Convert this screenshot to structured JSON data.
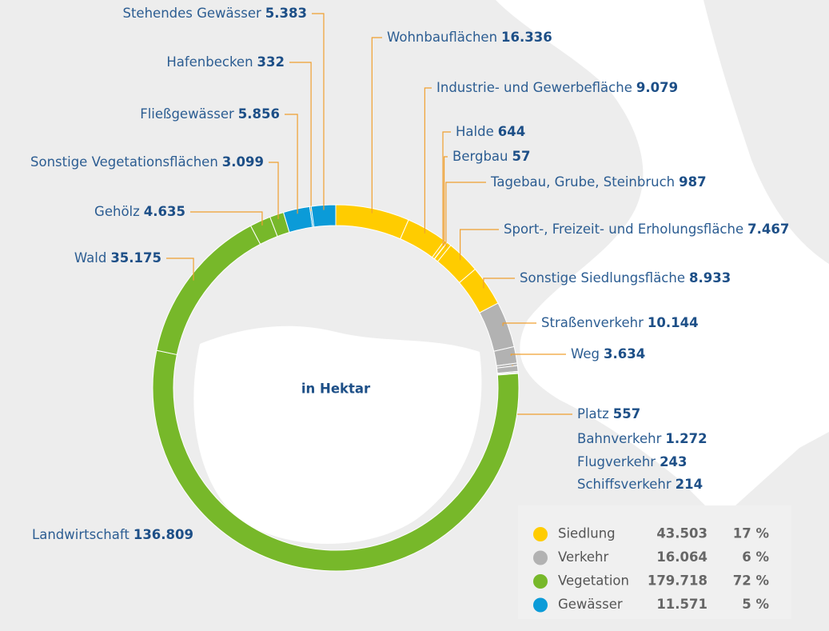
{
  "chart_data": {
    "type": "donut",
    "center_label": "in Hektar",
    "groups": [
      {
        "name": "Siedlung",
        "color": "#ffcc00",
        "value": 43503,
        "value_label": "43.503",
        "percent": 17,
        "percent_label": "17 %",
        "categories": [
          "Wohnbauflächen",
          "Industrie- und Gewerbefläche",
          "Halde",
          "Bergbau",
          "Tagebau, Grube, Steinbruch",
          "Sport-, Freizeit- und Erholungsfläche",
          "Sonstige Siedlungsfläche"
        ],
        "values": [
          16336,
          9079,
          644,
          57,
          987,
          7467,
          8933
        ],
        "value_labels": [
          "16.336",
          "9.079",
          "644",
          "57",
          "987",
          "7.467",
          "8.933"
        ]
      },
      {
        "name": "Verkehr",
        "color": "#b2b2b2",
        "value": 16064,
        "value_label": "16.064",
        "percent": 6,
        "percent_label": "6 %",
        "categories": [
          "Straßenverkehr",
          "Weg",
          "Platz",
          "Bahnverkehr",
          "Flugverkehr",
          "Schiffsverkehr"
        ],
        "values": [
          10144,
          3634,
          557,
          1272,
          243,
          214
        ],
        "value_labels": [
          "10.144",
          "3.634",
          "557",
          "1.272",
          "243",
          "214"
        ]
      },
      {
        "name": "Vegetation",
        "color": "#77b82a",
        "value": 179718,
        "value_label": "179.718",
        "percent": 72,
        "percent_label": "72 %",
        "categories": [
          "Landwirtschaft",
          "Wald",
          "Gehölz",
          "Sonstige Vegetationsflächen"
        ],
        "values": [
          136809,
          35175,
          4635,
          3099
        ],
        "value_labels": [
          "136.809",
          "35.175",
          "4.635",
          "3.099"
        ]
      },
      {
        "name": "Gewässer",
        "color": "#0b9bd8",
        "value": 11571,
        "value_label": "11.571",
        "percent": 5,
        "percent_label": "5 %",
        "categories": [
          "Fließgewässer",
          "Hafenbecken",
          "Stehendes Gewässer"
        ],
        "values": [
          5856,
          332,
          5383
        ],
        "value_labels": [
          "5.856",
          "332",
          "5.383"
        ]
      }
    ]
  }
}
